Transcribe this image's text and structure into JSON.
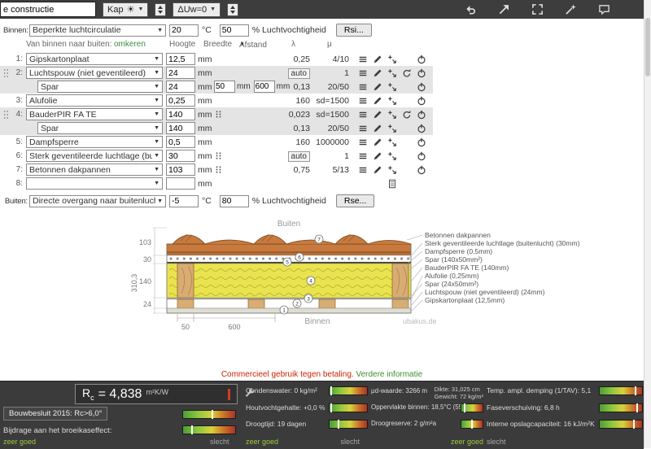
{
  "toolbar": {
    "project_input": "e constructie",
    "type_select": "Kap",
    "du_select": "ΔUw=0"
  },
  "environment": {
    "inside_label": "Binnen:",
    "inside_select": "Beperkte luchtcirculatie",
    "inside_temp": "20",
    "inside_humidity": "50",
    "outside_label": "Buiten:",
    "outside_select": "Directe overgang naar buitenlucht",
    "outside_temp": "-5",
    "outside_humidity": "80",
    "temp_unit": "°C",
    "humidity_label": "% Luchtvochtigheid",
    "rsi_button": "Rsi...",
    "rse_button": "Rse..."
  },
  "table_header": {
    "direction": "Van binnen naar buiten:",
    "invert_link": "omkeren",
    "height": "Hoogte",
    "width": "Breedte",
    "distance": "Afstand",
    "lambda": "λ",
    "mu": "μ"
  },
  "layers": [
    {
      "num": "1:",
      "name": "Gipskartonplaat",
      "thickness": "12,5",
      "unit": "mm",
      "lambda": "0,25",
      "mu": "4/10"
    },
    {
      "num": "2:",
      "name": "Luchtspouw (niet geventileerd)",
      "thickness": "24",
      "unit": "mm",
      "lambda": "auto",
      "mu": "1"
    },
    {
      "num": "",
      "name": "Spar",
      "thickness": "24",
      "unit": "mm",
      "width": "50",
      "width_unit": "mm",
      "distance": "600",
      "distance_unit": "mm",
      "lambda": "0,13",
      "mu": "20/50"
    },
    {
      "num": "3:",
      "name": "Alufolie",
      "thickness": "0,25",
      "unit": "mm",
      "lambda": "160",
      "mu": "sd=1500"
    },
    {
      "num": "4:",
      "name": "BauderPIR FA TE",
      "thickness": "140",
      "unit": "mm",
      "lambda": "0,023",
      "mu": "sd=1500"
    },
    {
      "num": "",
      "name": "Spar",
      "thickness": "140",
      "unit": "mm",
      "lambda": "0,13",
      "mu": "20/50"
    },
    {
      "num": "5:",
      "name": "Dampfsperre",
      "thickness": "0,5",
      "unit": "mm",
      "lambda": "160",
      "mu": "1000000"
    },
    {
      "num": "6:",
      "name": "Sterk geventileerde luchtlage (buiten)",
      "thickness": "30",
      "unit": "mm",
      "lambda": "auto",
      "mu": "1"
    },
    {
      "num": "7:",
      "name": "Betonnen dakpannen",
      "thickness": "103",
      "unit": "mm",
      "lambda": "0,75",
      "mu": "5/13"
    },
    {
      "num": "8:",
      "name": "",
      "thickness": "",
      "unit": "mm",
      "lambda": "",
      "mu": ""
    }
  ],
  "diagram": {
    "top_label": "Buiten",
    "bottom_label": "Binnen",
    "watermark": "ubakus.de",
    "total_dim": "310,3",
    "dim_tiles": "103",
    "dim_vent": "30",
    "dim_insulation": "140",
    "dim_cavity": "24",
    "dim_width": "50",
    "dim_spacing": "600",
    "labels": [
      "Betonnen dakpannen",
      "Sterk geventileerde luchtlage (buitenlucht) (30mm)",
      "Dampfsperre (0,5mm)",
      "Spar (140x50mm²)",
      "BauderPIR FA TE (140mm)",
      "Alufolie (0,25mm)",
      "Spar (24x50mm²)",
      "Luchtspouw (niet geventileerd) (24mm)",
      "Gipskartonplaat (12,5mm)"
    ],
    "markers": [
      "1",
      "2",
      "3",
      "4",
      "5",
      "6",
      "7"
    ]
  },
  "notice": {
    "text": "Commercieel gebruik tegen betaling.",
    "link": "Verdere informatie"
  },
  "results": {
    "rc_symbol": "R",
    "rc_sub": "c",
    "rc_value": "= 4,838",
    "rc_unit": "m²K/W",
    "bouwbesluit": "Bouwbesluit 2015: Rc>6,0°",
    "broeikaseffect": "Bijdrage aan het broeikaseffect:",
    "condenswater": "Condenswater: 0 kg/m²",
    "houtvochtgehalte": "Houtvochtgehalte: +0,0 %",
    "droogtijd": "Droogtijd: 19 dagen",
    "ud_waarde": "μd-waarde: 3266 m",
    "dikte": "Dikte: 31,025 cm",
    "gewicht": "Gewicht: 72 kg/m²",
    "oppervlakte": "Oppervlakte binnen: 18,5°C (55%)",
    "droogreserve": "Droogreserve: 2 g/m²a",
    "temp_demping": "Temp. ampl. demping (1/TAV): 5,1",
    "faseverschuiving": "Faseverschuiving: 6,8 h",
    "opslagcapaciteit": "Interne opslagcapaciteit: 16 kJ/m²K",
    "good_label": "zeer goed",
    "bad_label": "slecht"
  },
  "bars": {
    "bouwbesluit": 55,
    "broeikas": 15,
    "condenswater": 3,
    "houtvocht": 3,
    "droogtijd": 22,
    "oppervlakte": 12,
    "droogreserve": 45,
    "temp": 82,
    "fase": 86,
    "opslag": 78
  }
}
